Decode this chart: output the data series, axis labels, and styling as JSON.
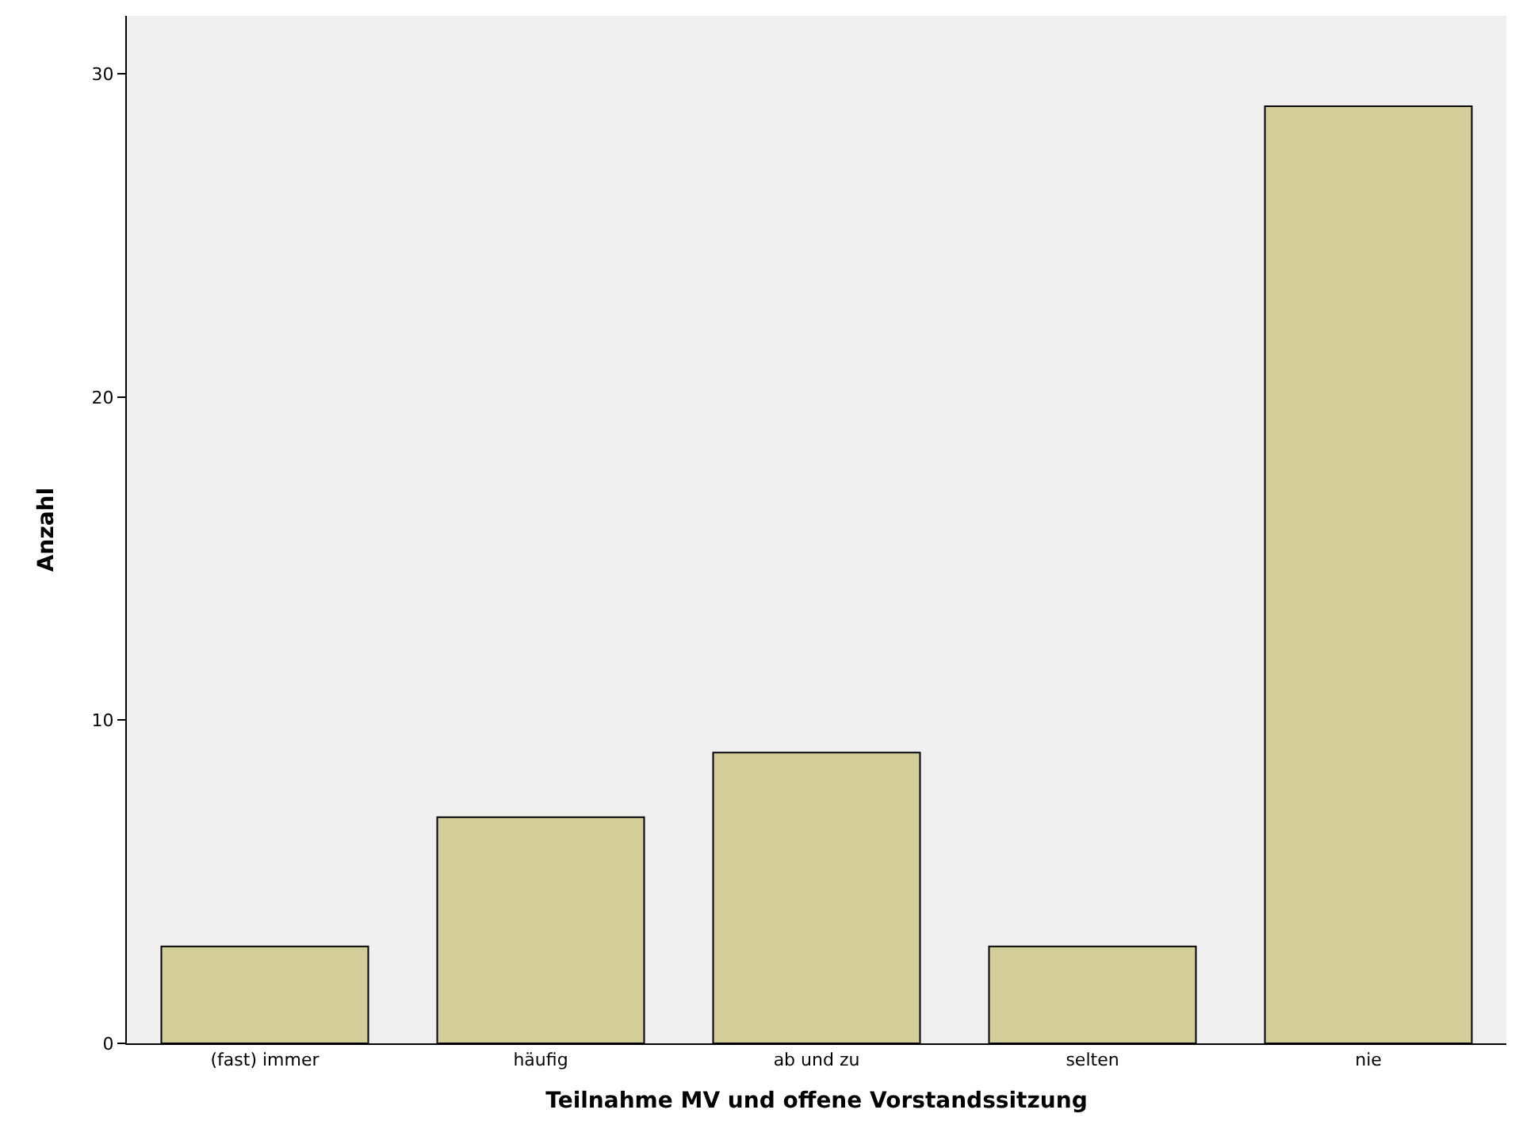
{
  "chart_data": {
    "type": "bar",
    "xlabel": "Teilnahme MV und offene Vorstandssitzung",
    "ylabel": "Anzahl",
    "categories": [
      "(fast) immer",
      "häufig",
      "ab und zu",
      "selten",
      "nie"
    ],
    "values": [
      3,
      7,
      9,
      3,
      29
    ],
    "color": "#d3ce97",
    "ylim": [
      0,
      31.8
    ],
    "yticks": [
      0,
      10,
      20,
      30
    ],
    "grid": false
  }
}
